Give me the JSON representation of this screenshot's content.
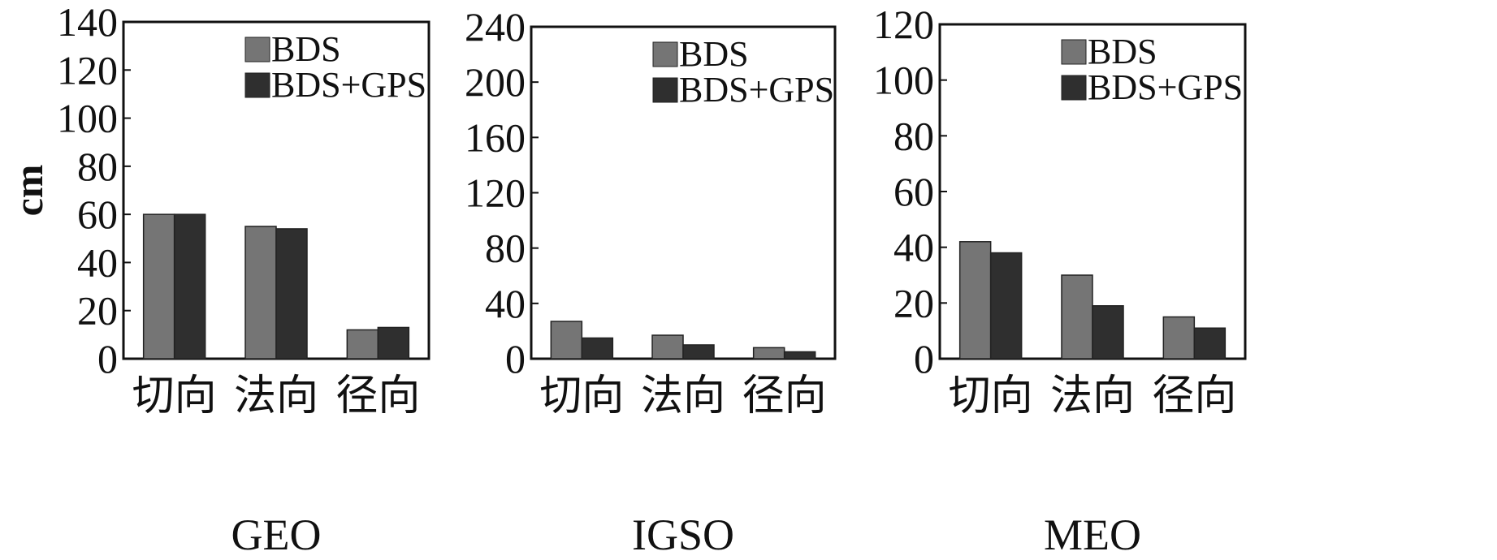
{
  "colors": {
    "BDS": "#757575",
    "BDS+GPS": "#2f2f2f"
  },
  "chart_data": [
    {
      "type": "bar",
      "title": "GEO",
      "ylabel": "cm",
      "ylim": [
        0,
        140
      ],
      "yticks": [
        0,
        20,
        40,
        60,
        80,
        100,
        120,
        140
      ],
      "categories": [
        "切向",
        "法向",
        "径向"
      ],
      "legend_position": "top-right",
      "series": [
        {
          "name": "BDS",
          "values": [
            60,
            55,
            12
          ]
        },
        {
          "name": "BDS+GPS",
          "values": [
            60,
            54,
            13
          ]
        }
      ]
    },
    {
      "type": "bar",
      "title": "IGSO",
      "ylim": [
        0,
        240
      ],
      "yticks": [
        0,
        40,
        80,
        120,
        160,
        200,
        240
      ],
      "categories": [
        "切向",
        "法向",
        "径向"
      ],
      "legend_position": "top-right",
      "series": [
        {
          "name": "BDS",
          "values": [
            27,
            17,
            8
          ]
        },
        {
          "name": "BDS+GPS",
          "values": [
            15,
            10,
            5
          ]
        }
      ]
    },
    {
      "type": "bar",
      "title": "MEO",
      "ylim": [
        0,
        120
      ],
      "yticks": [
        0,
        20,
        40,
        60,
        80,
        100,
        120
      ],
      "categories": [
        "切向",
        "法向",
        "径向"
      ],
      "legend_position": "top-right",
      "series": [
        {
          "name": "BDS",
          "values": [
            42,
            30,
            15
          ]
        },
        {
          "name": "BDS+GPS",
          "values": [
            38,
            19,
            11
          ]
        }
      ]
    }
  ]
}
